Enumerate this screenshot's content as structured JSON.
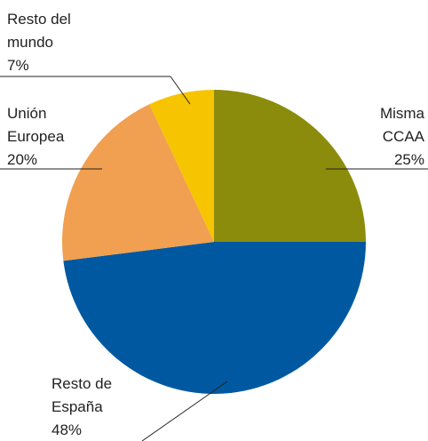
{
  "chart_data": {
    "type": "pie",
    "categories": [
      "Misma CCAA",
      "Resto de España",
      "Unión Europea",
      "Resto del mundo"
    ],
    "values": [
      25,
      48,
      20,
      7
    ],
    "value_labels": [
      "25%",
      "48%",
      "20%",
      "7%"
    ],
    "colors": [
      "#8c8c0c",
      "#0059a0",
      "#f0a050",
      "#f6c400"
    ]
  }
}
